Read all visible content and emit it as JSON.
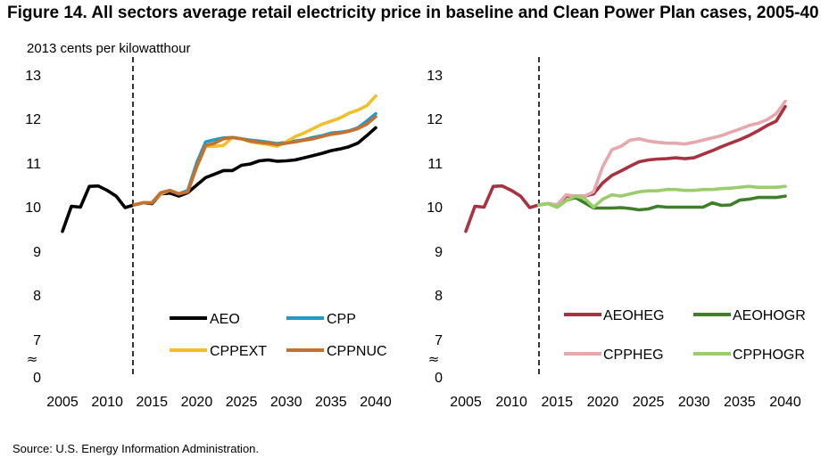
{
  "figure": {
    "title": "Figure 14. All sectors average retail electricity price in baseline and Clean Power Plan cases, 2005-40",
    "y_unit": "2013 cents per kilowatthour",
    "source": "Source: U.S. Energy Information Administration.",
    "axis_break_symbol": "≈"
  },
  "chart_data": [
    {
      "type": "line",
      "title": "",
      "ylabel": "2013 cents per kilowatthour",
      "xlabel": "",
      "x_ticks": [
        2005,
        2010,
        2015,
        2020,
        2025,
        2030,
        2035,
        2040
      ],
      "y_ticks": [
        "0",
        "7",
        "8",
        "9",
        "10",
        "11",
        "12",
        "13"
      ],
      "ylim_display": [
        7,
        13
      ],
      "axis_break": true,
      "grid": false,
      "projection_marker_x": 2013,
      "legend": "inside-bottom",
      "x": [
        2005,
        2006,
        2007,
        2008,
        2009,
        2010,
        2011,
        2012,
        2013,
        2014,
        2015,
        2016,
        2017,
        2018,
        2019,
        2020,
        2021,
        2022,
        2023,
        2024,
        2025,
        2026,
        2027,
        2028,
        2029,
        2030,
        2031,
        2032,
        2033,
        2034,
        2035,
        2036,
        2037,
        2038,
        2039,
        2040
      ],
      "series": [
        {
          "name": "AEO",
          "color": "#000000",
          "values": [
            9.45,
            10.02,
            10.0,
            10.47,
            10.48,
            10.38,
            10.25,
            9.99,
            10.05,
            10.1,
            10.08,
            10.3,
            10.32,
            10.25,
            10.33,
            10.5,
            10.67,
            10.75,
            10.83,
            10.83,
            10.95,
            10.98,
            11.05,
            11.07,
            11.04,
            11.05,
            11.07,
            11.12,
            11.17,
            11.22,
            11.28,
            11.32,
            11.37,
            11.45,
            11.62,
            11.8
          ]
        },
        {
          "name": "CPP",
          "color": "#1f9ac9",
          "values": [
            null,
            null,
            null,
            null,
            null,
            null,
            null,
            null,
            10.05,
            10.1,
            10.1,
            10.33,
            10.38,
            10.3,
            10.38,
            11.0,
            11.48,
            11.53,
            11.57,
            11.58,
            11.55,
            11.52,
            11.5,
            11.47,
            11.44,
            11.47,
            11.5,
            11.53,
            11.58,
            11.62,
            11.68,
            11.7,
            11.73,
            11.8,
            11.95,
            12.12
          ]
        },
        {
          "name": "CPPEXT",
          "color": "#f0bf2b",
          "values": [
            null,
            null,
            null,
            null,
            null,
            null,
            null,
            null,
            10.05,
            10.1,
            10.1,
            10.3,
            10.38,
            10.3,
            10.35,
            10.9,
            11.38,
            11.38,
            11.4,
            11.58,
            11.55,
            11.48,
            11.45,
            11.42,
            11.38,
            11.48,
            11.6,
            11.68,
            11.78,
            11.88,
            11.95,
            12.02,
            12.13,
            12.2,
            12.3,
            12.52
          ]
        },
        {
          "name": "CPPNUC",
          "color": "#c4712f",
          "values": [
            null,
            null,
            null,
            null,
            null,
            null,
            null,
            null,
            10.05,
            10.1,
            10.1,
            10.33,
            10.38,
            10.3,
            10.35,
            10.92,
            11.4,
            11.45,
            11.55,
            11.58,
            11.55,
            11.5,
            11.47,
            11.45,
            11.42,
            11.45,
            11.48,
            11.52,
            11.55,
            11.6,
            11.65,
            11.68,
            11.72,
            11.78,
            11.88,
            12.05
          ]
        }
      ]
    },
    {
      "type": "line",
      "title": "",
      "ylabel": "",
      "xlabel": "",
      "x_ticks": [
        2005,
        2010,
        2015,
        2020,
        2025,
        2030,
        2035,
        2040
      ],
      "y_ticks": [
        "0",
        "7",
        "8",
        "9",
        "10",
        "11",
        "12",
        "13"
      ],
      "ylim_display": [
        7,
        13
      ],
      "axis_break": true,
      "grid": false,
      "projection_marker_x": 2013,
      "legend": "inside-bottom",
      "x": [
        2005,
        2006,
        2007,
        2008,
        2009,
        2010,
        2011,
        2012,
        2013,
        2014,
        2015,
        2016,
        2017,
        2018,
        2019,
        2020,
        2021,
        2022,
        2023,
        2024,
        2025,
        2026,
        2027,
        2028,
        2029,
        2030,
        2031,
        2032,
        2033,
        2034,
        2035,
        2036,
        2037,
        2038,
        2039,
        2040
      ],
      "series": [
        {
          "name": "AEOHEG",
          "color": "#a8323f",
          "values": [
            9.45,
            10.02,
            10.0,
            10.47,
            10.48,
            10.38,
            10.25,
            9.99,
            10.05,
            10.08,
            10.05,
            10.25,
            10.25,
            10.25,
            10.3,
            10.55,
            10.72,
            10.82,
            10.93,
            11.03,
            11.07,
            11.09,
            11.1,
            11.12,
            11.1,
            11.12,
            11.2,
            11.28,
            11.37,
            11.45,
            11.53,
            11.62,
            11.73,
            11.85,
            11.95,
            12.28
          ]
        },
        {
          "name": "AEOHOGR",
          "color": "#3f7f2a",
          "values": [
            null,
            null,
            null,
            null,
            null,
            null,
            null,
            null,
            10.05,
            10.08,
            10.0,
            10.15,
            10.22,
            10.1,
            9.98,
            9.98,
            9.98,
            9.99,
            9.97,
            9.94,
            9.96,
            10.02,
            10.0,
            10.0,
            10.0,
            10.0,
            10.0,
            10.1,
            10.04,
            10.05,
            10.16,
            10.18,
            10.22,
            10.22,
            10.22,
            10.25
          ]
        },
        {
          "name": "CPPHEG",
          "color": "#e6a7ad",
          "values": [
            null,
            null,
            null,
            null,
            null,
            null,
            null,
            null,
            10.05,
            10.08,
            10.05,
            10.28,
            10.25,
            10.25,
            10.35,
            10.92,
            11.3,
            11.38,
            11.52,
            11.55,
            11.5,
            11.47,
            11.45,
            11.45,
            11.43,
            11.47,
            11.52,
            11.57,
            11.62,
            11.7,
            11.77,
            11.85,
            11.9,
            11.98,
            12.12,
            12.4
          ]
        },
        {
          "name": "CPPHOGR",
          "color": "#9acd6c",
          "values": [
            null,
            null,
            null,
            null,
            null,
            null,
            null,
            null,
            10.05,
            10.08,
            10.0,
            10.15,
            10.25,
            10.2,
            10.0,
            10.18,
            10.28,
            10.25,
            10.3,
            10.35,
            10.37,
            10.37,
            10.4,
            10.4,
            10.38,
            10.38,
            10.4,
            10.4,
            10.42,
            10.43,
            10.45,
            10.47,
            10.45,
            10.45,
            10.45,
            10.47
          ]
        }
      ]
    }
  ]
}
